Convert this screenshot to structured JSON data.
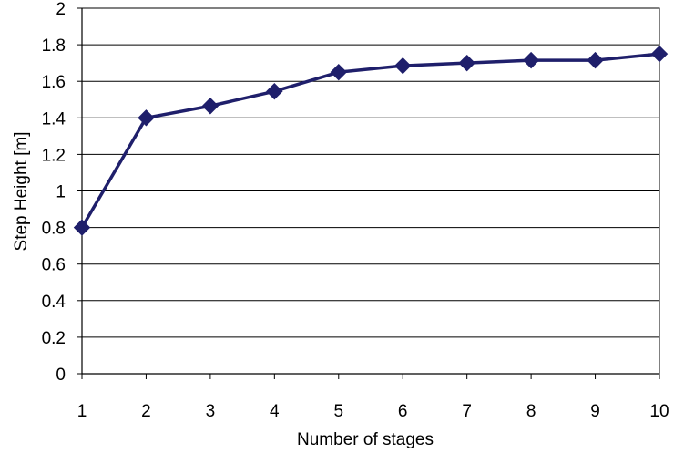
{
  "chart_data": {
    "type": "line",
    "title": "",
    "xlabel": "Number of stages",
    "ylabel": "Step Height [m]",
    "x": [
      1,
      2,
      3,
      4,
      5,
      6,
      7,
      8,
      9,
      10
    ],
    "x_tick_labels": [
      "1",
      "2",
      "3",
      "4",
      "5",
      "6",
      "7",
      "8",
      "9",
      "10"
    ],
    "y_tick_labels": [
      "0",
      "0.2",
      "0.4",
      "0.6",
      "0.8",
      "1",
      "1.2",
      "1.4",
      "1.6",
      "1.8",
      "2"
    ],
    "ylim": [
      0,
      2
    ],
    "xlim": [
      1,
      10
    ],
    "grid": true,
    "legend": "none",
    "series": [
      {
        "color": "#1f1f6b",
        "marker": "diamond",
        "values": [
          0.8,
          1.4,
          1.465,
          1.545,
          1.65,
          1.685,
          1.7,
          1.715,
          1.715,
          1.75
        ]
      }
    ]
  }
}
